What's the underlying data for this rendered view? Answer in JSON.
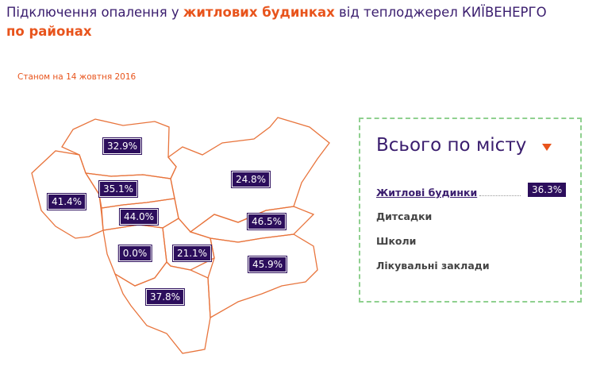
{
  "header": {
    "title_parts": [
      "Підключення опалення у ",
      "житлових будинках",
      " від теплоджерел КИЇВЕНЕРГО ",
      "по районах"
    ],
    "date": "Станом на 14 жовтня 2016"
  },
  "map": {
    "districts": [
      {
        "label": "32.9%"
      },
      {
        "label": "41.4%"
      },
      {
        "label": "35.1%"
      },
      {
        "label": "44.0%"
      },
      {
        "label": "0.0%"
      },
      {
        "label": "21.1%"
      },
      {
        "label": "37.8%"
      },
      {
        "label": "24.8%"
      },
      {
        "label": "46.5%"
      },
      {
        "label": "45.9%"
      }
    ]
  },
  "panel": {
    "title": "Всього по місту",
    "items": [
      {
        "label": "Житлові будинки",
        "value": "36.3%"
      },
      {
        "label": "Дитсадки"
      },
      {
        "label": "Школи"
      },
      {
        "label": "Лікувальні заклади"
      }
    ]
  }
}
